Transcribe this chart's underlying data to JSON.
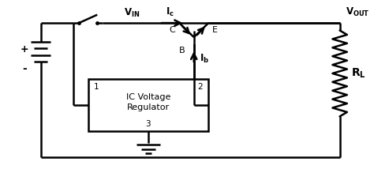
{
  "bg_color": "#ffffff",
  "line_color": "#000000",
  "lw": 1.8,
  "fig_w": 4.74,
  "fig_h": 2.19,
  "dpi": 100,
  "xlim": [
    0,
    10
  ],
  "ylim": [
    0,
    4.6
  ]
}
